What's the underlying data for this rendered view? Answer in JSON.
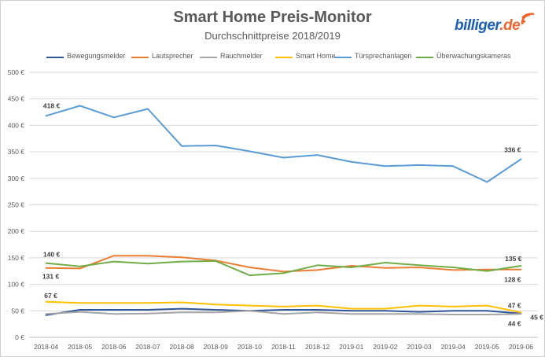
{
  "chart_data": {
    "type": "line",
    "title": "Smart Home Preis-Monitor",
    "subtitle": "Durchschnittpreise 2018/2019",
    "categories": [
      "2018-04",
      "2018-05",
      "2018-06",
      "2018-07",
      "2018-08",
      "2018-09",
      "2018-10",
      "2018-11",
      "2018-12",
      "2019-01",
      "2019-02",
      "2019-03",
      "2019-04",
      "2019-05",
      "2019-06"
    ],
    "yticks": [
      "0 €",
      "50 €",
      "100 €",
      "150 €",
      "200 €",
      "250 €",
      "300 €",
      "350 €",
      "400 €",
      "450 €",
      "500 €"
    ],
    "ylim": [
      0,
      500
    ],
    "grid": true,
    "legend": "top",
    "series": [
      {
        "name": "Bewegungsmelder",
        "color": "#2f5597",
        "values": [
          42,
          52,
          52,
          52,
          54,
          52,
          50,
          52,
          52,
          50,
          50,
          48,
          50,
          50,
          45
        ],
        "labels": [
          {
            "index": 14,
            "text": "45 €"
          }
        ]
      },
      {
        "name": "Lautsprecher",
        "color": "#ed7d31",
        "values": [
          131,
          130,
          154,
          154,
          151,
          145,
          132,
          124,
          127,
          135,
          131,
          132,
          127,
          128,
          128
        ],
        "labels": [
          {
            "index": 0,
            "text": "131 €"
          },
          {
            "index": 14,
            "text": "128 €"
          }
        ]
      },
      {
        "name": "Rauchmelder",
        "color": "#a5a5a5",
        "values": [
          44,
          48,
          44,
          45,
          47,
          47,
          50,
          44,
          47,
          44,
          44,
          44,
          43,
          43,
          44
        ],
        "labels": [
          {
            "index": 14,
            "text": "44 €"
          }
        ]
      },
      {
        "name": "Smart Home",
        "color": "#ffc000",
        "values": [
          67,
          65,
          65,
          65,
          66,
          62,
          60,
          58,
          60,
          54,
          54,
          60,
          58,
          60,
          47
        ],
        "labels": [
          {
            "index": 0,
            "text": "67 €"
          },
          {
            "index": 14,
            "text": "47 €"
          }
        ]
      },
      {
        "name": "Türsprechanlagen",
        "color": "#5b9bd5",
        "values": [
          418,
          437,
          415,
          431,
          361,
          362,
          351,
          339,
          344,
          331,
          323,
          325,
          323,
          293,
          336
        ],
        "labels": [
          {
            "index": 0,
            "text": "418 €"
          },
          {
            "index": 14,
            "text": "336 €"
          }
        ]
      },
      {
        "name": "Überwachungskameras",
        "color": "#70ad47",
        "values": [
          140,
          134,
          143,
          139,
          143,
          144,
          117,
          121,
          136,
          132,
          141,
          136,
          132,
          125,
          135
        ],
        "labels": [
          {
            "index": 0,
            "text": "140 €"
          },
          {
            "index": 14,
            "text": "135 €"
          }
        ]
      }
    ]
  },
  "brand": {
    "name": "billiger",
    "tld": ".de",
    "dot_color": "#f0642d",
    "text_color": "#1b60b6"
  }
}
